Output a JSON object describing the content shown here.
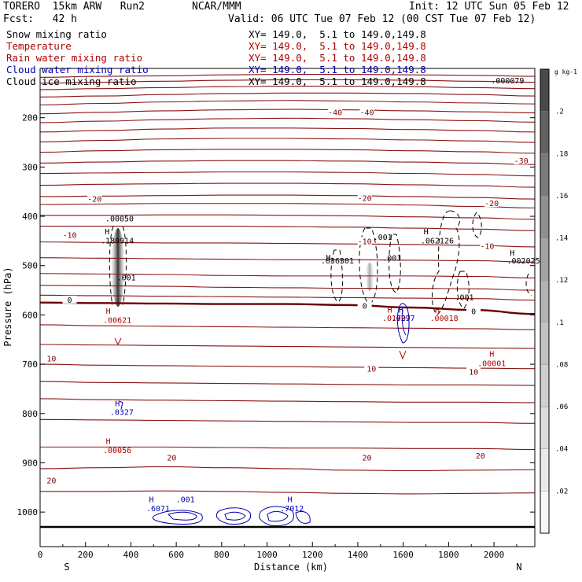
{
  "header": {
    "model": "TORERO  15km ARW   Run2",
    "org": "NCAR/MMM",
    "init": "Init: 12 UTC Sun 05 Feb 12",
    "fcst": "Fcst:   42 h",
    "valid": "Valid: 06 UTC Tue 07 Feb 12 (00 CST Tue 07 Feb 12)"
  },
  "fields": [
    {
      "name": "Snow mixing ratio",
      "color": "#000000",
      "xy": "XY= 149.0,  5.1 to 149.0,149.8"
    },
    {
      "name": "Temperature",
      "color": "#b00000",
      "xy": "XY= 149.0,  5.1 to 149.0,149.8"
    },
    {
      "name": "Rain water mixing ratio",
      "color": "#b00000",
      "xy": "XY= 149.0,  5.1 to 149.0,149.8"
    },
    {
      "name": "Cloud water mixing ratio",
      "color": "#0000b0",
      "xy": "XY= 149.0,  5.1 to 149.0,149.8"
    },
    {
      "name": "Cloud ice mixing ratio",
      "color": "#000000",
      "xy": "XY= 149.0,  5.1 to 149.0,149.8"
    }
  ],
  "chart_data": {
    "type": "cross-section",
    "xlabel": "Distance (km)",
    "ylabel": "Pressure (hPa)",
    "xlim": [
      0,
      2180
    ],
    "ylim": [
      1070,
      100
    ],
    "x_ticks": [
      0,
      200,
      400,
      600,
      800,
      1000,
      1200,
      1400,
      1600,
      1800,
      2000
    ],
    "y_ticks": [
      200,
      300,
      400,
      500,
      600,
      700,
      800,
      900,
      1000
    ],
    "x_end_labels": {
      "left": "S",
      "right": "N"
    },
    "colorbar": {
      "unit": "g kg-1",
      "ticks": [
        ".02",
        ".04",
        ".06",
        ".08",
        ".1",
        ".12",
        ".14",
        ".16",
        ".18",
        ".2"
      ],
      "colors": [
        "#f7f7f7",
        "#e9e9e9",
        "#dcdcdc",
        "#cfcfcf",
        "#c2c2c2",
        "#b3b3b3",
        "#a3a3a3",
        "#8f8f8f",
        "#7a7a7a",
        "#626262",
        "#4a4a4a"
      ]
    },
    "surface_p": 1012,
    "isotherms": [
      {
        "t": -50,
        "p": [
          118,
          116,
          115,
          113,
          112,
          112,
          113,
          114,
          116
        ]
      },
      {
        "t": -48,
        "p": [
          130,
          128,
          126,
          124,
          123,
          123,
          124,
          126,
          128
        ]
      },
      {
        "t": -46,
        "p": [
          143,
          141,
          139,
          137,
          136,
          136,
          137,
          139,
          141
        ]
      },
      {
        "t": -44,
        "p": [
          158,
          156,
          153,
          151,
          150,
          150,
          151,
          153,
          156
        ]
      },
      {
        "t": -42,
        "p": [
          174,
          171,
          168,
          166,
          165,
          166,
          168,
          170,
          172
        ]
      },
      {
        "t": -40,
        "p": [
          192,
          189,
          186,
          184,
          183,
          184,
          186,
          188,
          190
        ]
      },
      {
        "t": -38,
        "p": [
          210,
          207,
          204,
          202,
          201,
          202,
          204,
          206,
          209
        ]
      },
      {
        "t": -36,
        "p": [
          229,
          226,
          223,
          221,
          221,
          222,
          224,
          226,
          229
        ]
      },
      {
        "t": -34,
        "p": [
          249,
          246,
          243,
          242,
          242,
          243,
          245,
          247,
          250
        ]
      },
      {
        "t": -32,
        "p": [
          270,
          267,
          265,
          264,
          264,
          265,
          267,
          269,
          272
        ]
      },
      {
        "t": -30,
        "p": [
          292,
          290,
          288,
          287,
          287,
          288,
          290,
          292,
          295
        ]
      },
      {
        "t": -28,
        "p": [
          313,
          312,
          311,
          310,
          310,
          311,
          313,
          315,
          318
        ]
      },
      {
        "t": -26,
        "p": [
          337,
          335,
          334,
          333,
          333,
          334,
          336,
          338,
          341
        ]
      },
      {
        "t": -24,
        "p": [
          360,
          359,
          358,
          357,
          357,
          358,
          360,
          362,
          365
        ]
      },
      {
        "t": -22,
        "p": [
          376,
          375,
          374,
          374,
          374,
          375,
          377,
          380,
          383
        ]
      },
      {
        "t": -20,
        "p": [
          398,
          398,
          397,
          397,
          398,
          399,
          401,
          403,
          406
        ]
      },
      {
        "t": -18,
        "p": [
          420,
          420,
          420,
          420,
          421,
          422,
          424,
          426,
          429
        ]
      },
      {
        "t": -15,
        "p": [
          452,
          453,
          454,
          454,
          455,
          456,
          457,
          459,
          462
        ]
      },
      {
        "t": -12,
        "p": [
          484,
          485,
          486,
          487,
          488,
          488,
          489,
          490,
          493
        ]
      },
      {
        "t": -9,
        "p": [
          516,
          517,
          518,
          520,
          521,
          521,
          521,
          522,
          525
        ]
      },
      {
        "t": -6,
        "p": [
          540,
          541,
          542,
          544,
          545,
          546,
          546,
          547,
          550
        ]
      },
      {
        "t": -3,
        "p": [
          560,
          561,
          562,
          563,
          564,
          565,
          566,
          567,
          570
        ]
      },
      {
        "t": 0,
        "p": [
          575,
          576,
          577,
          578,
          578,
          580,
          585,
          590,
          598
        ]
      },
      {
        "t": 3,
        "p": [
          620,
          622,
          623,
          624,
          625,
          626,
          627,
          628,
          630
        ]
      },
      {
        "t": 6,
        "p": [
          660,
          661,
          662,
          663,
          664,
          665,
          666,
          667,
          668
        ]
      },
      {
        "t": 9,
        "p": [
          700,
          702,
          703,
          704,
          705,
          706,
          707,
          708,
          709
        ]
      },
      {
        "t": 12,
        "p": [
          735,
          737,
          738,
          739,
          740,
          741,
          742,
          742,
          743
        ]
      },
      {
        "t": 14,
        "p": [
          770,
          772,
          773,
          774,
          775,
          776,
          777,
          777,
          778
        ]
      },
      {
        "t": 16,
        "p": [
          812,
          813,
          814,
          815,
          816,
          817,
          818,
          818,
          820
        ]
      },
      {
        "t": 18,
        "p": [
          868,
          868,
          868,
          869,
          870,
          870,
          871,
          871,
          873
        ]
      },
      {
        "t": 20,
        "p": [
          912,
          910,
          908,
          910,
          912,
          915,
          916,
          915,
          914
        ]
      },
      {
        "t": 23,
        "p": [
          958,
          958,
          957,
          958,
          960,
          962,
          963,
          962,
          961
        ]
      }
    ],
    "isotherm_x": [
      0,
      272,
      545,
      817,
      1090,
      1362,
      1635,
      1907,
      2180
    ],
    "contour_labels": [
      {
        "text": "-40",
        "x": 1300,
        "p": 192,
        "color": "#7a0000"
      },
      {
        "text": "-40",
        "x": 1440,
        "p": 192,
        "color": "#7a0000"
      },
      {
        "text": "-30",
        "x": 2120,
        "p": 290,
        "color": "#7a0000"
      },
      {
        "text": "-20",
        "x": 240,
        "p": 367,
        "color": "#7a0000"
      },
      {
        "text": "-20",
        "x": 1430,
        "p": 366,
        "color": "#7a0000"
      },
      {
        "text": "-20",
        "x": 1990,
        "p": 376,
        "color": "#7a0000"
      },
      {
        "text": "-10",
        "x": 130,
        "p": 441,
        "color": "#7a0000"
      },
      {
        "text": "-10",
        "x": 1430,
        "p": 453,
        "color": "#7a0000"
      },
      {
        "text": "-10",
        "x": 1970,
        "p": 463,
        "color": "#7a0000"
      },
      {
        "text": "0",
        "x": 130,
        "p": 572,
        "color": "#000000"
      },
      {
        "text": "0",
        "x": 1430,
        "p": 584,
        "color": "#000000"
      },
      {
        "text": "0",
        "x": 1910,
        "p": 595,
        "color": "#000000"
      },
      {
        "text": "10",
        "x": 50,
        "p": 691,
        "color": "#7a0000"
      },
      {
        "text": "10",
        "x": 1460,
        "p": 712,
        "color": "#7a0000"
      },
      {
        "text": "10",
        "x": 1910,
        "p": 718,
        "color": "#7a0000"
      },
      {
        "text": "20",
        "x": 50,
        "p": 938,
        "color": "#7a0000"
      },
      {
        "text": "20",
        "x": 580,
        "p": 892,
        "color": "#7a0000"
      },
      {
        "text": "20",
        "x": 1440,
        "p": 892,
        "color": "#7a0000"
      },
      {
        "text": "20",
        "x": 1940,
        "p": 888,
        "color": "#7a0000"
      }
    ],
    "maxima": [
      {
        "text": ".180914",
        "x": 340,
        "p": 455,
        "color": "#000000"
      },
      {
        "text": ".001",
        "x": 380,
        "p": 530,
        "color": "#000000"
      },
      {
        "text": ".00050",
        "x": 350,
        "p": 410,
        "color": "#000000"
      },
      {
        "text": ".00621",
        "x": 340,
        "p": 616,
        "color": "#b00000"
      },
      {
        "text": ".0327",
        "x": 360,
        "p": 803,
        "color": "#0000b0"
      },
      {
        "text": ".00056",
        "x": 340,
        "p": 880,
        "color": "#b00000"
      },
      {
        "text": ".036301",
        "x": 1310,
        "p": 496,
        "color": "#000000"
      },
      {
        "text": ".001",
        "x": 1510,
        "p": 448,
        "color": "#000000"
      },
      {
        "text": ".001",
        "x": 1550,
        "p": 490,
        "color": "#000000"
      },
      {
        "text": ".062126",
        "x": 1750,
        "p": 455,
        "color": "#000000"
      },
      {
        "text": ".001",
        "x": 1870,
        "p": 570,
        "color": "#000000"
      },
      {
        "text": ".002025",
        "x": 2130,
        "p": 496,
        "color": "#000000"
      },
      {
        "text": ".01797",
        "x": 1570,
        "p": 612,
        "color": "#b00000"
      },
      {
        "text": ".0297",
        "x": 1600,
        "p": 612,
        "color": "#0000b0"
      },
      {
        "text": ".00018",
        "x": 1780,
        "p": 612,
        "color": "#b00000"
      },
      {
        "text": ".00001",
        "x": 1990,
        "p": 704,
        "color": "#b00000"
      },
      {
        "text": ".000079",
        "x": 2060,
        "p": 130,
        "color": "#000000"
      },
      {
        "text": ".6071",
        "x": 520,
        "p": 998,
        "color": "#0000b0"
      },
      {
        "text": ".001",
        "x": 640,
        "p": 980,
        "color": "#0000b0"
      },
      {
        "text": ".7012",
        "x": 1110,
        "p": 998,
        "color": "#0000b0"
      }
    ],
    "h_markers": [
      {
        "x": 285,
        "p": 437,
        "color": "#000000"
      },
      {
        "x": 1260,
        "p": 489,
        "color": "#000000"
      },
      {
        "x": 1690,
        "p": 437,
        "color": "#000000"
      },
      {
        "x": 2070,
        "p": 480,
        "color": "#000000"
      },
      {
        "x": 290,
        "p": 598,
        "color": "#b00000"
      },
      {
        "x": 1530,
        "p": 595,
        "color": "#b00000"
      },
      {
        "x": 1580,
        "p": 595,
        "color": "#0000b0"
      },
      {
        "x": 1740,
        "p": 595,
        "color": "#b00000"
      },
      {
        "x": 1980,
        "p": 685,
        "color": "#b00000"
      },
      {
        "x": 330,
        "p": 785,
        "color": "#0000b0"
      },
      {
        "x": 290,
        "p": 862,
        "color": "#b00000"
      },
      {
        "x": 480,
        "p": 980,
        "color": "#0000b0"
      },
      {
        "x": 1090,
        "p": 980,
        "color": "#0000b0"
      }
    ]
  }
}
